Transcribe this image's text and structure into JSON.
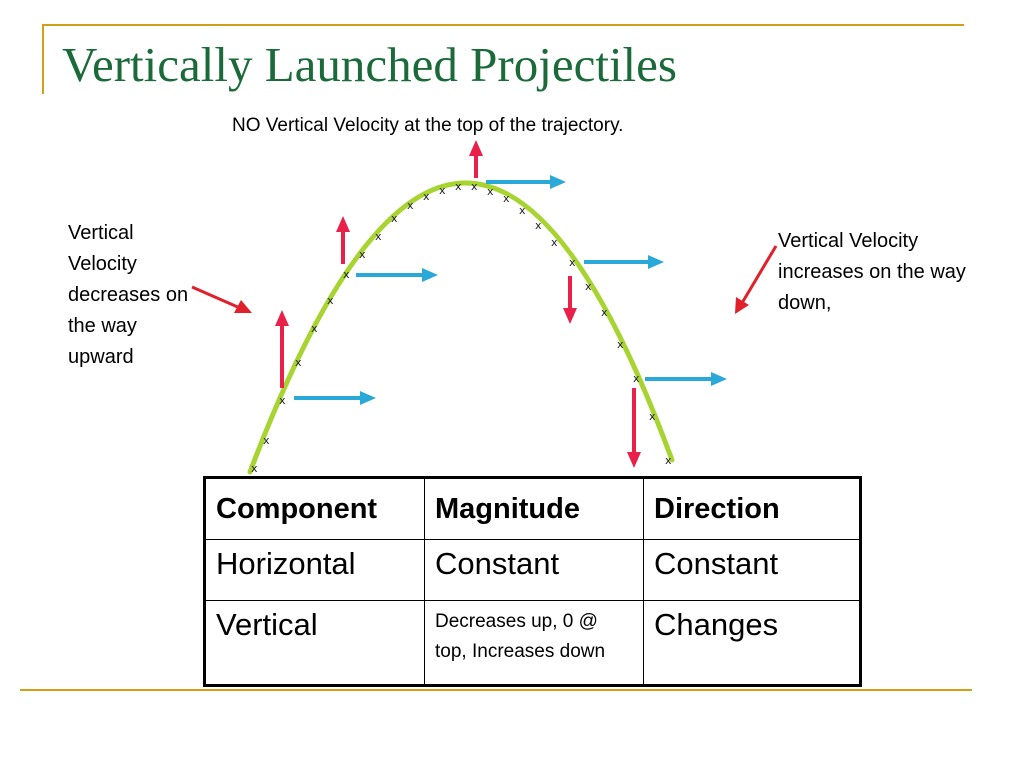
{
  "slide": {
    "title": "Vertically Launched Projectiles",
    "top_caption": "NO Vertical Velocity at the top of the trajectory.",
    "left_caption": "Vertical Velocity decreases on the way upward",
    "right_caption": "Vertical Velocity increases on the way down,"
  },
  "diagram": {
    "trajectory_marker": "x",
    "colors": {
      "trajectory": "#a8d432",
      "vertical_arrow": "#e8204a",
      "horizontal_arrow": "#2aa8d8",
      "pointer_arrow": "#e0202a",
      "title": "#1b6b3a",
      "rule": "#d4a017"
    }
  },
  "table": {
    "headers": [
      "Component",
      "Magnitude",
      "Direction"
    ],
    "rows": [
      [
        "Horizontal",
        "Constant",
        "Constant"
      ],
      [
        "Vertical",
        "Decreases up, 0 @ top, Increases down",
        "Changes"
      ]
    ]
  }
}
